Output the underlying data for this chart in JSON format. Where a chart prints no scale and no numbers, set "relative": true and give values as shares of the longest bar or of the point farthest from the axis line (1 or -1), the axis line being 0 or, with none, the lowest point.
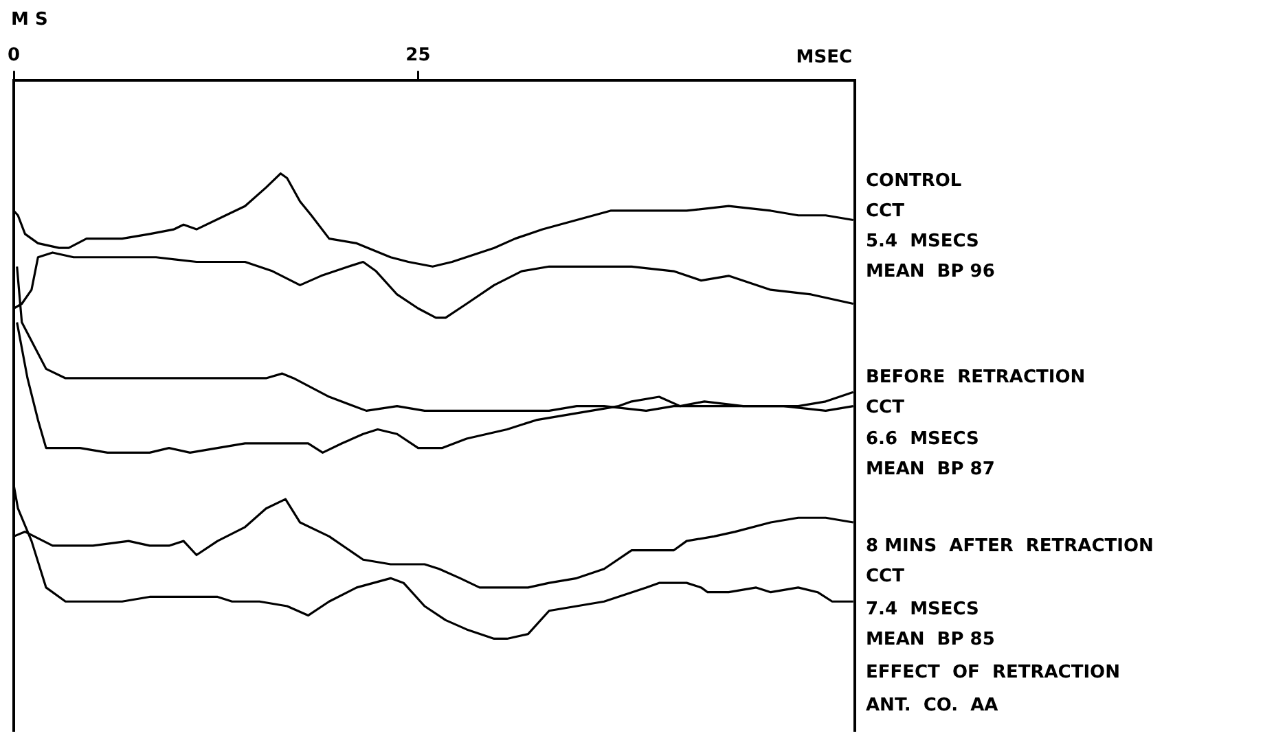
{
  "chart_data": {
    "type": "line",
    "relative": true,
    "xlabel": "MSEC",
    "ylabel": "M S",
    "xlim": [
      0,
      52
    ],
    "xticks": [
      0,
      25
    ],
    "legend": false,
    "marker": "none",
    "line_style": "solid",
    "annotations": [
      "CONTROL",
      "CCT",
      "5.4  MSECS",
      "MEAN  BP 96",
      "BEFORE  RETRACTION",
      "CCT",
      "6.6  MSECS",
      "MEAN  BP 87",
      "8 MINS  AFTER  RETRACTION",
      "CCT",
      "7.4  MSECS",
      "MEAN  BP 85",
      "EFFECT  OF  RETRACTION",
      "ANT.  CO.  AA"
    ],
    "series": [
      {
        "color": "#000000",
        "x": [
          0,
          0.26,
          0.7,
          1.5,
          2.8,
          3.4,
          4.5,
          6.7,
          8.4,
          9.9,
          10.5,
          11.3,
          13.1,
          14.3,
          15.6,
          16.5,
          16.9,
          17.7,
          18.4,
          19.5,
          21.2,
          23.3,
          24.4,
          25.9,
          27.1,
          29.7,
          31.0,
          32.7,
          34.8,
          36.9,
          39.1,
          41.6,
          44.2,
          46.8,
          48.5,
          50.2,
          51.9
        ],
        "values": [
          0.92,
          0.91,
          0.87,
          0.85,
          0.84,
          0.84,
          0.86,
          0.86,
          0.87,
          0.88,
          0.89,
          0.88,
          0.91,
          0.93,
          0.97,
          1.0,
          0.99,
          0.94,
          0.91,
          0.86,
          0.85,
          0.82,
          0.81,
          0.8,
          0.81,
          0.84,
          0.86,
          0.88,
          0.9,
          0.92,
          0.92,
          0.92,
          0.93,
          0.92,
          0.91,
          0.91,
          0.9
        ]
      },
      {
        "color": "#000000",
        "x": [
          0,
          0.5,
          1.1,
          1.5,
          2.4,
          3.7,
          4.3,
          6.7,
          8.8,
          11.3,
          14.3,
          16.0,
          17.7,
          19.0,
          20.7,
          21.6,
          22.4,
          23.7,
          25.0,
          26.1,
          26.7,
          28.0,
          29.7,
          31.4,
          33.1,
          36.5,
          38.2,
          40.8,
          42.5,
          44.2,
          46.8,
          49.3,
          51.9
        ],
        "values": [
          0.71,
          0.72,
          0.75,
          0.82,
          0.83,
          0.82,
          0.82,
          0.82,
          0.82,
          0.81,
          0.81,
          0.79,
          0.76,
          0.78,
          0.8,
          0.81,
          0.79,
          0.74,
          0.71,
          0.69,
          0.69,
          0.72,
          0.76,
          0.79,
          0.8,
          0.8,
          0.8,
          0.79,
          0.77,
          0.78,
          0.75,
          0.74,
          0.72
        ]
      },
      {
        "color": "#000000",
        "x": [
          0.2,
          0.5,
          2.0,
          3.2,
          4.9,
          6.7,
          9.2,
          10.5,
          12.6,
          13.9,
          15.6,
          16.6,
          17.3,
          19.5,
          21.8,
          23.7,
          25.4,
          27.1,
          29.7,
          33.1,
          34.8,
          36.5,
          39.1,
          40.8,
          43.3,
          45.1,
          47.6,
          50.2,
          51.9
        ],
        "values": [
          0.8,
          0.68,
          0.58,
          0.56,
          0.56,
          0.56,
          0.56,
          0.56,
          0.56,
          0.56,
          0.56,
          0.57,
          0.56,
          0.52,
          0.49,
          0.5,
          0.49,
          0.49,
          0.49,
          0.49,
          0.5,
          0.5,
          0.49,
          0.5,
          0.5,
          0.5,
          0.5,
          0.49,
          0.5
        ]
      },
      {
        "color": "#000000",
        "x": [
          0.2,
          0.85,
          1.5,
          2.0,
          2.8,
          4.1,
          5.8,
          8.4,
          9.6,
          10.9,
          12.6,
          14.3,
          16.9,
          18.2,
          19.1,
          20.3,
          21.6,
          22.5,
          23.7,
          25.0,
          26.5,
          28.0,
          30.5,
          32.3,
          34.0,
          35.7,
          37.4,
          38.2,
          39.9,
          41.2,
          42.7,
          45.1,
          46.8,
          48.5,
          50.2,
          51.9
        ],
        "values": [
          0.68,
          0.56,
          0.47,
          0.41,
          0.41,
          0.41,
          0.4,
          0.4,
          0.41,
          0.4,
          0.41,
          0.42,
          0.42,
          0.42,
          0.4,
          0.42,
          0.44,
          0.45,
          0.44,
          0.41,
          0.41,
          0.43,
          0.45,
          0.47,
          0.48,
          0.49,
          0.5,
          0.51,
          0.52,
          0.5,
          0.51,
          0.5,
          0.5,
          0.5,
          0.51,
          0.53
        ]
      },
      {
        "color": "#000000",
        "x": [
          0,
          0.7,
          2.4,
          4.9,
          7.1,
          8.4,
          9.6,
          10.5,
          11.3,
          12.6,
          14.3,
          15.6,
          16.8,
          17.7,
          19.5,
          21.6,
          23.3,
          25.0,
          25.4,
          26.3,
          27.6,
          28.8,
          30.5,
          31.8,
          33.1,
          34.8,
          36.5,
          38.2,
          39.1,
          39.9,
          40.8,
          41.6,
          43.3,
          44.6,
          46.8,
          48.5,
          50.2,
          51.9
        ],
        "values": [
          0.22,
          0.23,
          0.2,
          0.2,
          0.21,
          0.2,
          0.2,
          0.21,
          0.18,
          0.21,
          0.24,
          0.28,
          0.3,
          0.25,
          0.22,
          0.17,
          0.16,
          0.16,
          0.16,
          0.15,
          0.13,
          0.11,
          0.11,
          0.11,
          0.12,
          0.13,
          0.15,
          0.19,
          0.19,
          0.19,
          0.19,
          0.21,
          0.22,
          0.23,
          0.25,
          0.26,
          0.26,
          0.25
        ]
      },
      {
        "color": "#000000",
        "x": [
          0,
          0.26,
          1.1,
          2.0,
          3.2,
          4.9,
          6.7,
          8.4,
          10.9,
          12.6,
          13.5,
          15.2,
          16.9,
          18.2,
          19.5,
          21.2,
          23.3,
          24.1,
          25.4,
          26.7,
          28.0,
          29.7,
          30.5,
          31.8,
          33.1,
          34.8,
          36.5,
          39.1,
          39.9,
          41.6,
          42.5,
          42.9,
          44.2,
          45.9,
          46.8,
          48.5,
          49.7,
          50.6,
          51.9
        ],
        "values": [
          0.33,
          0.28,
          0.21,
          0.11,
          0.08,
          0.08,
          0.08,
          0.09,
          0.09,
          0.09,
          0.08,
          0.08,
          0.07,
          0.05,
          0.08,
          0.11,
          0.13,
          0.12,
          0.07,
          0.04,
          0.02,
          0.0,
          0,
          0.01,
          0.06,
          0.07,
          0.08,
          0.11,
          0.12,
          0.12,
          0.11,
          0.1,
          0.1,
          0.11,
          0.1,
          0.11,
          0.1,
          0.08,
          0.08
        ]
      }
    ]
  }
}
